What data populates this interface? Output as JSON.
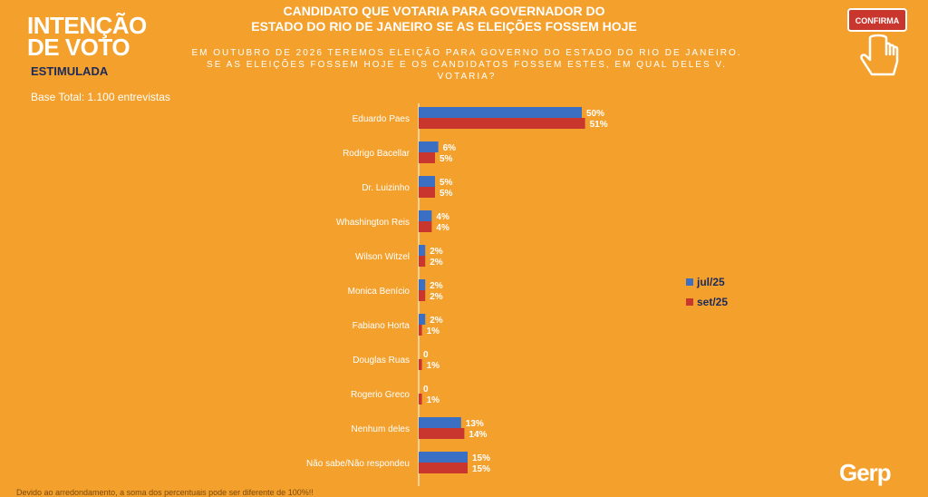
{
  "header": {
    "section_title": "INTENÇÃO\nDE VOTO",
    "section_subtitle": "ESTIMULADA",
    "base_text": "Base Total: 1.100 entrevistas",
    "main_title_line1": "CANDIDATO QUE VOTARIA PARA GOVERNADOR DO",
    "main_title_line2": "ESTADO DO RIO DE JANEIRO SE AS ELEIÇÕES FOSSEM HOJE",
    "question_line1": "EM OUTUBRO DE 2026 TEREMOS ELEIÇÃO PARA GOVERNO DO ESTADO DO RIO DE JANEIRO.",
    "question_line2": "SE AS ELEIÇÕES FOSSEM HOJE E OS CANDIDATOS FOSSEM ESTES, EM QUAL DELES V.",
    "question_line3": "VOTARIA?",
    "confirma_label": "CONFIRMA"
  },
  "footer": {
    "logo": "Gerp",
    "note": "Devido ao arredondamento, a soma dos percentuais pode ser diferente de 100%!!"
  },
  "colors": {
    "background": "#f4a02c",
    "series_jul": "#3a6fc4",
    "series_set": "#c8362e"
  },
  "chart_data": {
    "type": "bar",
    "orientation": "horizontal",
    "categories": [
      "Eduardo Paes",
      "Rodrigo Bacellar",
      "Dr. Luizinho",
      "Whashington Reis",
      "Wilson Witzel",
      "Monica Benício",
      "Fabiano Horta",
      "Douglas Ruas",
      "Rogerio Greco",
      "Nenhum deles",
      "Não sabe/Não respondeu"
    ],
    "series": [
      {
        "name": "jul/25",
        "values": [
          50,
          6,
          5,
          4,
          2,
          2,
          2,
          0,
          0,
          13,
          15
        ],
        "labels": [
          "50%",
          "6%",
          "5%",
          "4%",
          "2%",
          "2%",
          "2%",
          "0",
          "0",
          "13%",
          "15%"
        ]
      },
      {
        "name": "set/25",
        "values": [
          51,
          5,
          5,
          4,
          2,
          2,
          1,
          1,
          1,
          14,
          15
        ],
        "labels": [
          "51%",
          "5%",
          "5%",
          "4%",
          "2%",
          "2%",
          "1%",
          "1%",
          "1%",
          "14%",
          "15%"
        ]
      }
    ],
    "xlim": [
      0,
      60
    ],
    "grid": false,
    "legend_position": "right"
  }
}
